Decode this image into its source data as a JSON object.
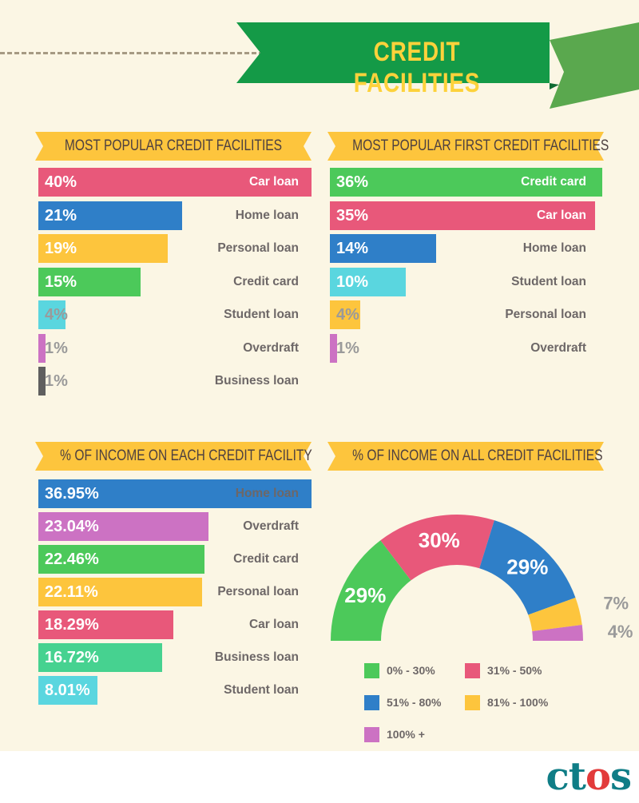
{
  "title": "CREDIT FACILITIES",
  "colors": {
    "background": "#fbf6e4",
    "banner_green": "#149a47",
    "banner_dark": "#0f6b33",
    "banner_light": "#5aa84e",
    "ribbon": "#fdc53d",
    "red": "#e8587a",
    "blue": "#2f7fc8",
    "yellow": "#fdc53d",
    "green": "#4cc95a",
    "cyan": "#5ad6df",
    "purple": "#cc72c3",
    "gray": "#5f5f5f",
    "teal": "#46d290"
  },
  "chart_data": [
    {
      "type": "bar",
      "title": "MOST POPULAR CREDIT FACILITIES",
      "categories": [
        "Car loan",
        "Home loan",
        "Personal loan",
        "Credit card",
        "Student loan",
        "Overdraft",
        "Business loan"
      ],
      "values": [
        40,
        21,
        19,
        15,
        4,
        1,
        1
      ],
      "labels": [
        "40%",
        "21%",
        "19%",
        "15%",
        "4%",
        "1%",
        "1%"
      ],
      "colors": [
        "#e8587a",
        "#2f7fc8",
        "#fdc53d",
        "#4cc95a",
        "#5ad6df",
        "#cc72c3",
        "#5f5f5f"
      ],
      "xlim": [
        0,
        40
      ]
    },
    {
      "type": "bar",
      "title": "MOST POPULAR FIRST CREDIT FACILITIES",
      "categories": [
        "Credit card",
        "Car loan",
        "Home loan",
        "Student loan",
        "Personal loan",
        "Overdraft"
      ],
      "values": [
        36,
        35,
        14,
        10,
        4,
        1
      ],
      "labels": [
        "36%",
        "35%",
        "14%",
        "10%",
        "4%",
        "1%"
      ],
      "colors": [
        "#4cc95a",
        "#e8587a",
        "#2f7fc8",
        "#5ad6df",
        "#fdc53d",
        "#cc72c3"
      ],
      "xlim": [
        0,
        36
      ]
    },
    {
      "type": "bar",
      "title": "% OF INCOME ON EACH CREDIT FACILITY",
      "categories": [
        "Home loan",
        "Overdraft",
        "Credit card",
        "Personal loan",
        "Car loan",
        "Business loan",
        "Student loan"
      ],
      "values": [
        36.95,
        23.04,
        22.46,
        22.11,
        18.29,
        16.72,
        8.01
      ],
      "labels": [
        "36.95%",
        "23.04%",
        "22.46%",
        "22.11%",
        "18.29%",
        "16.72%",
        "8.01%"
      ],
      "colors": [
        "#2f7fc8",
        "#cc72c3",
        "#4cc95a",
        "#fdc53d",
        "#e8587a",
        "#46d290",
        "#5ad6df"
      ],
      "xlim": [
        0,
        36.95
      ]
    },
    {
      "type": "pie",
      "title": "% OF INCOME ON ALL CREDIT FACILITIES",
      "categories": [
        "0% - 30%",
        "31% - 50%",
        "51% - 80%",
        "81% - 100%",
        "100% +"
      ],
      "values": [
        29,
        30,
        29,
        7,
        4
      ],
      "labels": [
        "29%",
        "30%",
        "29%",
        "7%",
        "4%"
      ],
      "colors": [
        "#4cc95a",
        "#e8587a",
        "#2f7fc8",
        "#fdc53d",
        "#cc72c3"
      ]
    }
  ],
  "logo": {
    "text": "ctos"
  }
}
